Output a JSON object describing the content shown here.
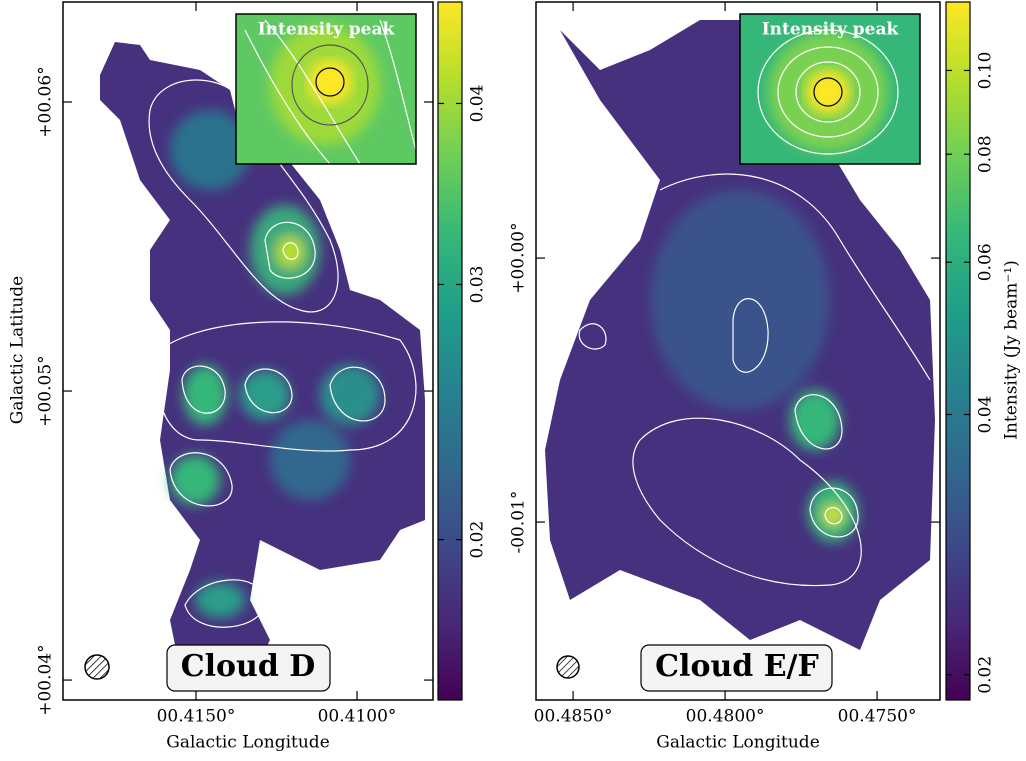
{
  "chart_data": [
    {
      "type": "image",
      "label": "Cloud D",
      "inset_title": "Intensity peak",
      "x_label": "Galactic Longitude",
      "y_label": "Galactic Latitude",
      "xlim": [
        0.41913,
        0.40764
      ],
      "ylim": [
        0.03931,
        0.06346
      ],
      "xticks": [
        {
          "value": 0.415,
          "label": "00.4150°"
        },
        {
          "value": 0.41,
          "label": "00.4100°"
        }
      ],
      "yticks": [
        {
          "value": 0.04,
          "label": "+00.04°"
        },
        {
          "value": 0.05,
          "label": "+00.05°"
        },
        {
          "value": 0.06,
          "label": "+00.06°"
        }
      ],
      "colorbar": {
        "cmap": "viridis",
        "scale": "log",
        "lim": [
          0.0155,
          0.047
        ],
        "ticks": [
          0.02,
          0.03,
          0.04
        ]
      }
    },
    {
      "type": "image",
      "label": "Cloud E/F",
      "inset_title": "Intensity peak",
      "x_label": "Galactic Longitude",
      "xlim": [
        0.48622,
        0.47293
      ],
      "ylim": [
        -0.01674,
        0.0097
      ],
      "xticks": [
        {
          "value": 0.485,
          "label": "00.4850°"
        },
        {
          "value": 0.48,
          "label": "00.4800°"
        },
        {
          "value": 0.475,
          "label": "00.4750°"
        }
      ],
      "yticks": [
        {
          "value": -0.01,
          "label": "-00.01°"
        },
        {
          "value": 0,
          "label": "+00.00°"
        }
      ],
      "colorbar": {
        "cmap": "viridis",
        "scale": "log",
        "lim": [
          0.0187,
          0.12
        ],
        "ticks": [
          0.02,
          0.04,
          0.06,
          0.08,
          {
            "value": 0.1,
            "label": "0.10"
          }
        ],
        "label": "Intensity (Jy beam⁻¹)"
      }
    }
  ]
}
